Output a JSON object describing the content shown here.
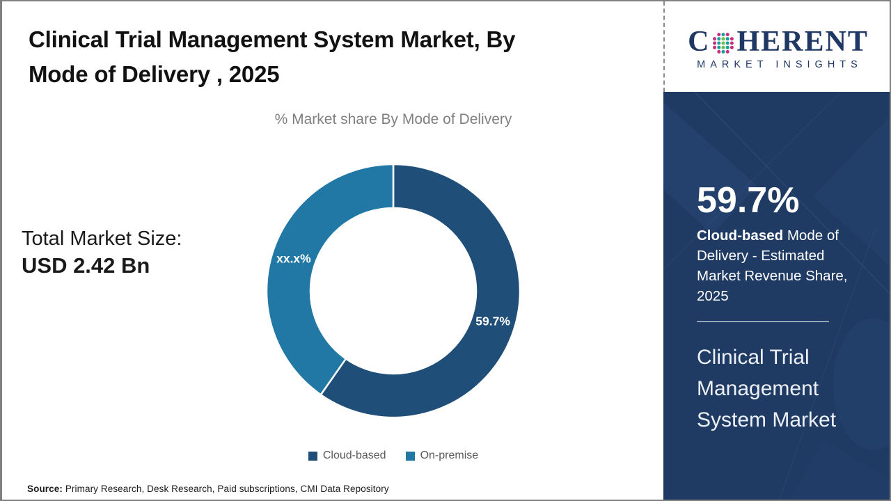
{
  "header": {
    "title_line1": "Clinical Trial Management System Market, By",
    "title_line2": "Mode of Delivery , 2025",
    "subtitle": "% Market share By Mode of Delivery"
  },
  "total_market": {
    "label": "Total Market Size:",
    "value": "USD 2.42 Bn"
  },
  "chart_data": {
    "type": "pie",
    "subtype": "donut",
    "title": "% Market share By Mode of Delivery",
    "categories": [
      "Cloud-based",
      "On-premise"
    ],
    "values": [
      59.7,
      40.3
    ],
    "slice_labels": [
      "59.7%",
      "xx.x%"
    ],
    "colors": [
      "#1F4E79",
      "#2278A5"
    ],
    "start_angle_deg": 0,
    "direction": "clockwise",
    "outer_radius": 182,
    "inner_radius": 119,
    "label_radius": 150,
    "legend_position": "bottom"
  },
  "sidebar": {
    "stat_value": "59.7%",
    "stat_desc_bold": "Cloud-based",
    "stat_desc_rest": " Mode of Delivery - Estimated Market Revenue Share, 2025",
    "market_name": "Clinical Trial Management System Market"
  },
  "logo": {
    "brand_prefix": "C",
    "brand_suffix": "HERENT",
    "tagline": "MARKET INSIGHTS"
  },
  "source": {
    "label": "Source:",
    "text": " Primary Research, Desk Research, Paid subscriptions, CMI Data Repository"
  },
  "colors": {
    "sidebar_background": "#1F3A63",
    "logo_navy": "#1F3864",
    "subtitle_gray": "#7F7F7F",
    "legend_text_gray": "#595959",
    "slice_dark_blue": "#1F4E79",
    "slice_light_blue": "#2278A5"
  }
}
